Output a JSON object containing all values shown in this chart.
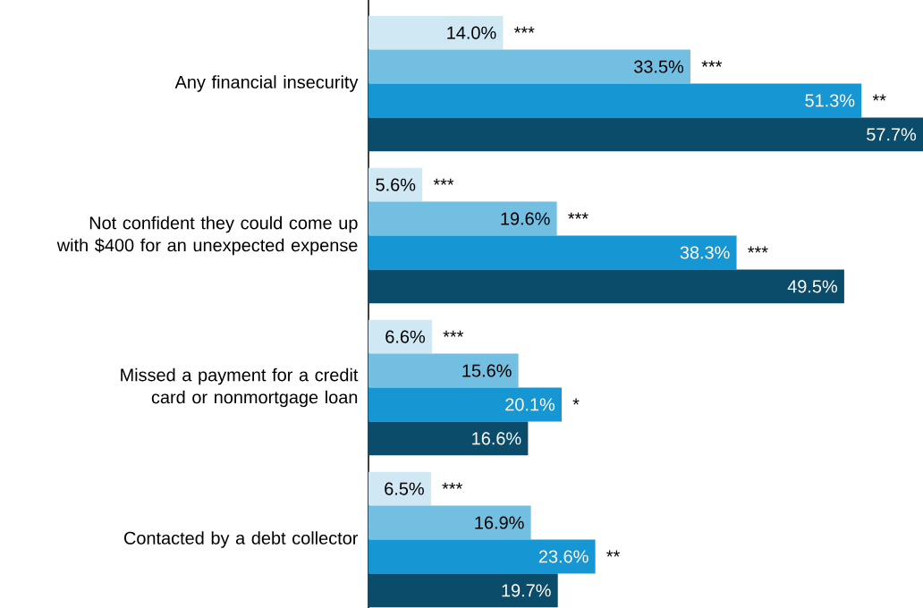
{
  "chart_data": {
    "type": "bar",
    "orientation": "horizontal",
    "categories": [
      "Any financial insecurity",
      "Not confident they could come up with $400 for an unexpected expense",
      "Missed a payment for a credit card or nonmortgage loan",
      "Contacted by a debt collector"
    ],
    "series": [
      {
        "color": "#cfe8f3",
        "values": [
          14.0,
          5.6,
          6.6,
          6.5
        ],
        "value_labels": [
          "14.0%",
          "5.6%",
          "6.6%",
          "6.5%"
        ]
      },
      {
        "color": "#73bfe2",
        "values": [
          33.5,
          19.6,
          15.6,
          16.9
        ],
        "value_labels": [
          "33.5%",
          "19.6%",
          "15.6%",
          "16.9%"
        ]
      },
      {
        "color": "#1696d2",
        "values": [
          51.3,
          38.3,
          20.1,
          23.6
        ],
        "value_labels": [
          "51.3%",
          "38.3%",
          "20.1%",
          "23.6%"
        ]
      },
      {
        "color": "#0a4c6a",
        "values": [
          57.7,
          49.5,
          16.6,
          19.7
        ],
        "value_labels": [
          "57.7%",
          "49.5%",
          "16.6%",
          "19.7%"
        ]
      }
    ],
    "xlim": [
      0,
      57.7
    ],
    "annotations": [
      {
        "text": "***",
        "x": 14.0,
        "y": "Any financial insecurity"
      },
      {
        "text": "***",
        "x": 33.5,
        "y": "Any financial insecurity"
      },
      {
        "text": "**",
        "x": 51.3,
        "y": "Any financial insecurity"
      },
      {
        "text": "***",
        "x": 5.6,
        "y": "Not confident they could come up with $400 for an unexpected expense"
      },
      {
        "text": "***",
        "x": 19.6,
        "y": "Not confident they could come up with $400 for an unexpected expense"
      },
      {
        "text": "***",
        "x": 38.3,
        "y": "Not confident they could come up with $400 for an unexpected expense"
      },
      {
        "text": "***",
        "x": 6.6,
        "y": "Missed a payment for a credit card or nonmortgage loan"
      },
      {
        "text": "*",
        "x": 20.1,
        "y": "Missed a payment for a credit card or nonmortgage loan"
      },
      {
        "text": "***",
        "x": 6.5,
        "y": "Contacted by a debt collector"
      },
      {
        "text": "**",
        "x": 23.6,
        "y": "Contacted by a debt collector"
      }
    ]
  }
}
